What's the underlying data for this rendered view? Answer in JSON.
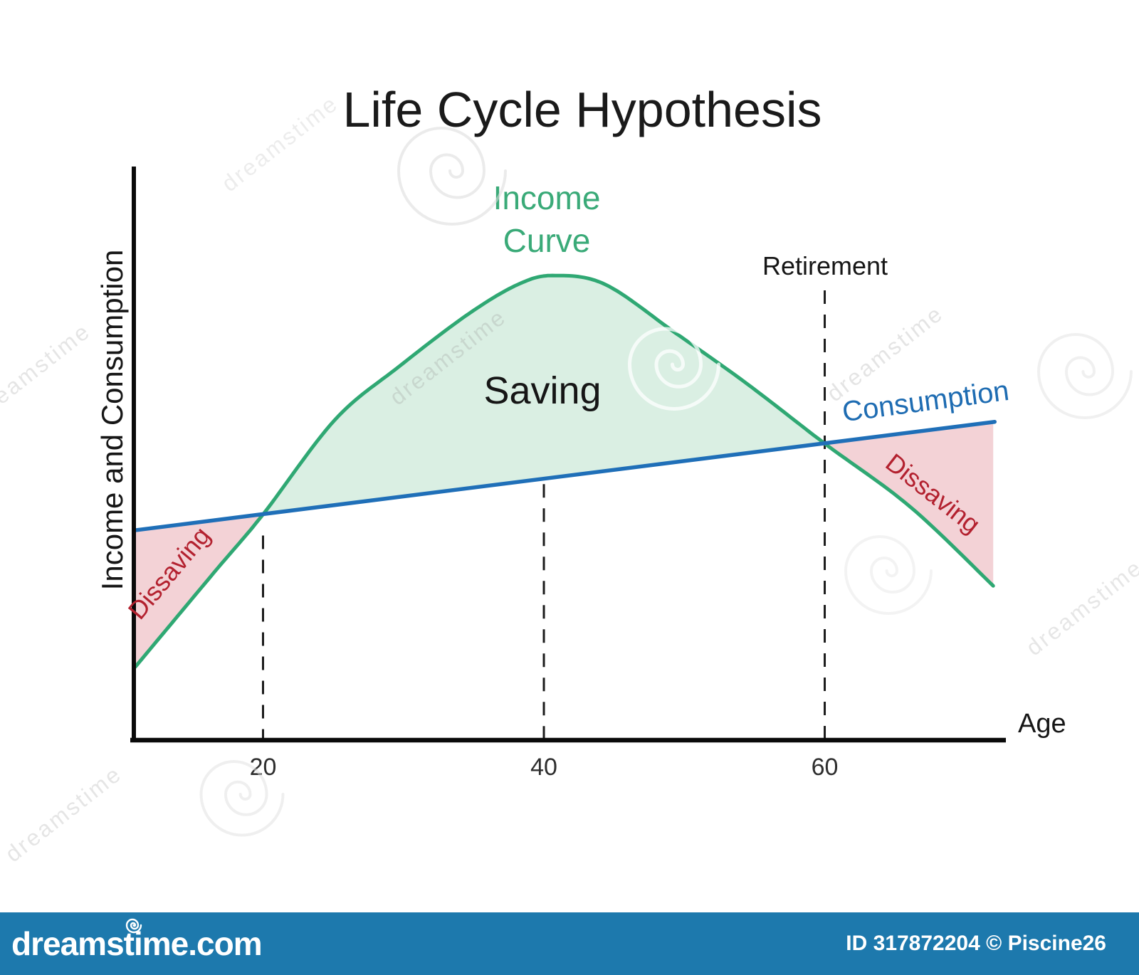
{
  "chart_data": {
    "type": "area",
    "title": "Life Cycle Hypothesis",
    "xlabel": "Age",
    "ylabel": "Income and Consumption",
    "xlim": [
      10.8,
      72.9
    ],
    "ylim": [
      0,
      100
    ],
    "x_ticks": [
      20,
      40,
      60
    ],
    "grid": false,
    "series": [
      {
        "name": "Income Curve",
        "type": "smooth-line",
        "color": "#2fa873",
        "points": [
          [
            10.9,
            12.8
          ],
          [
            16.5,
            29.3
          ],
          [
            20,
            39.5
          ],
          [
            25.1,
            56.0
          ],
          [
            29.7,
            65.4
          ],
          [
            34.7,
            74.7
          ],
          [
            38.3,
            79.9
          ],
          [
            40.8,
            81.3
          ],
          [
            44.4,
            79.7
          ],
          [
            49.4,
            71.2
          ],
          [
            54.5,
            62.3
          ],
          [
            60,
            51.9
          ],
          [
            66.1,
            40.8
          ],
          [
            72,
            27.0
          ]
        ]
      },
      {
        "name": "Consumption",
        "type": "line",
        "color": "#1f6fb8",
        "points": [
          [
            10.8,
            36.7
          ],
          [
            72.1,
            55.7
          ]
        ]
      }
    ],
    "regions": [
      {
        "label": "Dissaving",
        "from_age": 10.9,
        "to_age": 20,
        "fill": "#f3d2d6"
      },
      {
        "label": "Saving",
        "from_age": 20,
        "to_age": 60,
        "fill": "#daefe3"
      },
      {
        "label": "Dissaving",
        "from_age": 60,
        "to_age": 72,
        "fill": "#f3d2d6"
      }
    ],
    "dashed_lines": [
      {
        "age": 20,
        "top_value": 35.8
      },
      {
        "age": 40,
        "top_value": 44.8
      },
      {
        "age": 60,
        "top_value": 78.7,
        "label": "Retirement"
      }
    ],
    "annotations": {
      "income_label_line1": "Income",
      "income_label_line2": "Curve",
      "saving": "Saving",
      "dissaving": "Dissaving",
      "retirement": "Retirement"
    }
  },
  "colors": {
    "income_green": "#2fa873",
    "income_fill": "#daefe3",
    "consumption_blue": "#1f6fb8",
    "dissaving_fill": "#f3d2d6",
    "dissaving_text": "#b3212f",
    "income_label": "#3aaa78",
    "consumption_label": "#1e6cb2",
    "axis": "#0d0d0d",
    "watermark_bar": "#1d79ad"
  },
  "watermark": {
    "text": "dreamstime",
    "brand": "dreamstime.com",
    "credit": "ID 317872204 © Piscine26"
  }
}
